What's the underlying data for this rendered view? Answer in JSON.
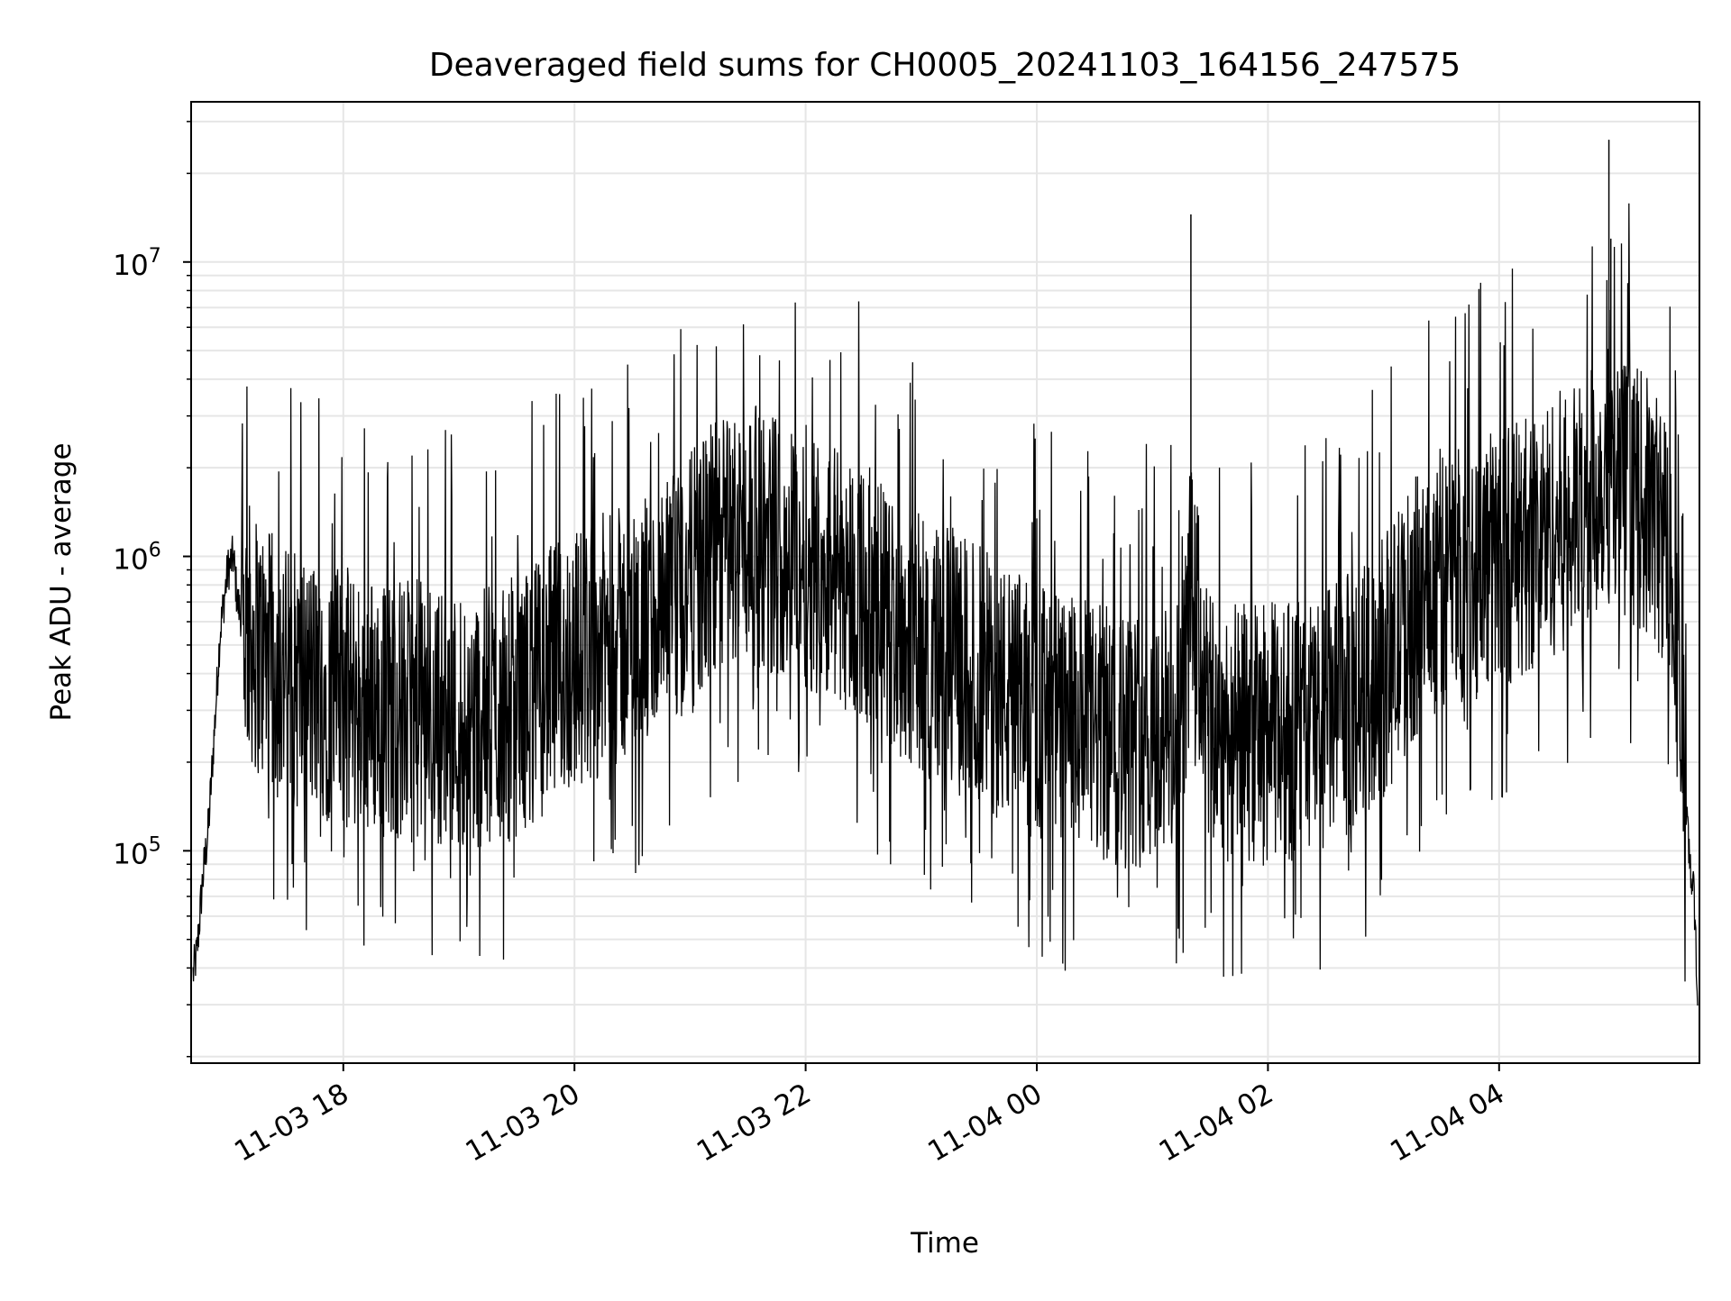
{
  "chart_data": {
    "type": "line",
    "title": "Deaveraged field sums for CH0005_20241103_164156_247575",
    "xlabel": "Time",
    "ylabel": "Peak ADU - average",
    "yscale": "log",
    "ylim": [
      19000,
      35000000
    ],
    "xlim": [
      "2024-11-03 16:41",
      "2024-11-04 05:44"
    ],
    "grid": true,
    "line_color": "#000000",
    "grid_color": "#e6e6e6",
    "x_ticks": [
      {
        "t": "2024-11-03 18:00",
        "label": "11-03 18"
      },
      {
        "t": "2024-11-03 20:00",
        "label": "11-03 20"
      },
      {
        "t": "2024-11-03 22:00",
        "label": "11-03 22"
      },
      {
        "t": "2024-11-04 00:00",
        "label": "11-04 00"
      },
      {
        "t": "2024-11-04 02:00",
        "label": "11-04 02"
      },
      {
        "t": "2024-11-04 04:00",
        "label": "11-04 04"
      }
    ],
    "y_ticks": [
      {
        "value": 100000,
        "base": "10",
        "exp": "5"
      },
      {
        "value": 1000000,
        "base": "10",
        "exp": "6"
      },
      {
        "value": 10000000,
        "base": "10",
        "exp": "7"
      }
    ],
    "series": [
      {
        "x": [
          "2024-11-03 16:42",
          "2024-11-03 16:44",
          "2024-11-03 16:47",
          "2024-11-03 16:50",
          "2024-11-03 16:53",
          "2024-11-03 16:56",
          "2024-11-03 17:00",
          "2024-11-03 17:03",
          "2024-11-03 17:05",
          "2024-11-03 17:08",
          "2024-11-03 17:11",
          "2024-11-03 17:15",
          "2024-11-03 17:20",
          "2024-11-03 17:25",
          "2024-11-03 17:30",
          "2024-11-03 17:35",
          "2024-11-03 17:40",
          "2024-11-03 17:45",
          "2024-11-03 17:50",
          "2024-11-03 17:55",
          "2024-11-03 18:00",
          "2024-11-03 18:10",
          "2024-11-03 18:20",
          "2024-11-03 18:30",
          "2024-11-03 18:40",
          "2024-11-03 18:50",
          "2024-11-03 19:00",
          "2024-11-03 19:10",
          "2024-11-03 19:20",
          "2024-11-03 19:30",
          "2024-11-03 19:40",
          "2024-11-03 19:50",
          "2024-11-03 20:00",
          "2024-11-03 20:15",
          "2024-11-03 20:30",
          "2024-11-03 20:45",
          "2024-11-03 21:00",
          "2024-11-03 21:15",
          "2024-11-03 21:30",
          "2024-11-03 21:45",
          "2024-11-03 22:00",
          "2024-11-03 22:15",
          "2024-11-03 22:30",
          "2024-11-03 22:45",
          "2024-11-03 23:00",
          "2024-11-03 23:15",
          "2024-11-03 23:30",
          "2024-11-03 23:45",
          "2024-11-04 00:00",
          "2024-11-04 00:15",
          "2024-11-04 00:30",
          "2024-11-04 00:45",
          "2024-11-04 01:00",
          "2024-11-04 01:15",
          "2024-11-04 01:20",
          "2024-11-04 01:30",
          "2024-11-04 01:45",
          "2024-11-04 02:00",
          "2024-11-04 02:15",
          "2024-11-04 02:30",
          "2024-11-04 02:45",
          "2024-11-04 03:00",
          "2024-11-04 03:15",
          "2024-11-04 03:30",
          "2024-11-04 03:45",
          "2024-11-04 04:00",
          "2024-11-04 04:15",
          "2024-11-04 04:30",
          "2024-11-04 04:45",
          "2024-11-04 04:55",
          "2024-11-04 05:00",
          "2024-11-04 05:10",
          "2024-11-04 05:20",
          "2024-11-04 05:30",
          "2024-11-04 05:34",
          "2024-11-04 05:37",
          "2024-11-04 05:40",
          "2024-11-04 05:42",
          "2024-11-04 05:43"
        ],
        "y": [
          38000,
          45000,
          80000,
          120000,
          250000,
          550000,
          900000,
          1000000,
          700000,
          600000,
          550000,
          500000,
          450000,
          420000,
          400000,
          380000,
          370000,
          360000,
          350000,
          340000,
          330000,
          320000,
          310000,
          300000,
          300000,
          290000,
          280000,
          280000,
          290000,
          310000,
          350000,
          400000,
          450000,
          500000,
          550000,
          600000,
          800000,
          1100000,
          1200000,
          1100000,
          1000000,
          900000,
          750000,
          600000,
          500000,
          450000,
          400000,
          330000,
          300000,
          270000,
          250000,
          240000,
          250000,
          250000,
          800000,
          260000,
          250000,
          250000,
          260000,
          280000,
          320000,
          420000,
          650000,
          850000,
          900000,
          1000000,
          1100000,
          1300000,
          1400000,
          2000000,
          1800000,
          1600000,
          1400000,
          1000000,
          300000,
          130000,
          80000,
          60000,
          26000
        ]
      }
    ]
  }
}
